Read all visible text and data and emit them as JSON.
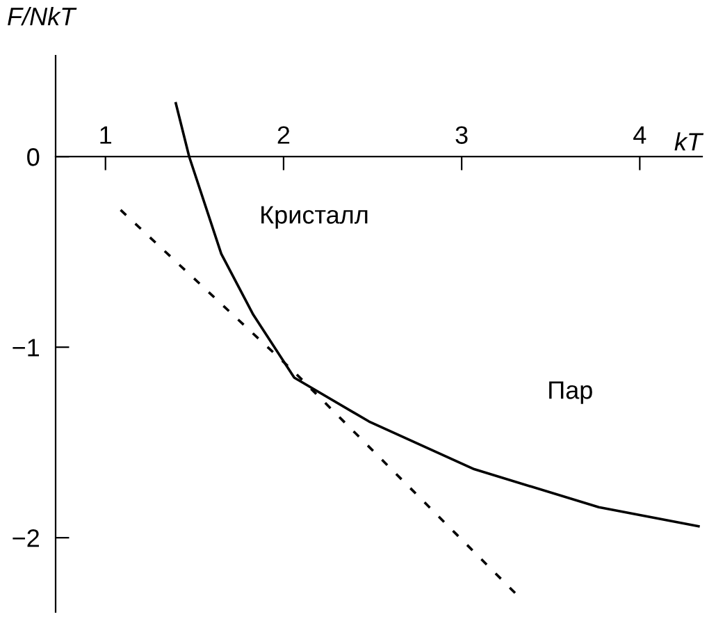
{
  "chart_data": {
    "type": "line",
    "ylabel": "F/NkT",
    "xlabel": "kT",
    "xlim": [
      0.72,
      4.35
    ],
    "ylim": [
      -2.39,
      0.53
    ],
    "xticks": [
      1,
      2,
      3,
      4
    ],
    "yticks": [
      0,
      -1,
      -2
    ],
    "grid": false,
    "legend": false,
    "series": [
      {
        "color": "#000000",
        "line_style": "solid",
        "x": [
          1.395,
          1.47,
          1.65,
          1.83,
          2.06,
          2.48,
          3.07,
          3.77,
          4.33
        ],
        "values": [
          0.28,
          0,
          -0.51,
          -0.83,
          -1.16,
          -1.39,
          -1.64,
          -1.84,
          -1.94
        ]
      },
      {
        "color": "#000000",
        "line_style": "dashed",
        "x": [
          1.085,
          2.06,
          3.3
        ],
        "values": [
          -0.28,
          -1.13,
          -2.29
        ]
      }
    ],
    "annotations": [
      "Кристалл",
      "Пар"
    ]
  }
}
